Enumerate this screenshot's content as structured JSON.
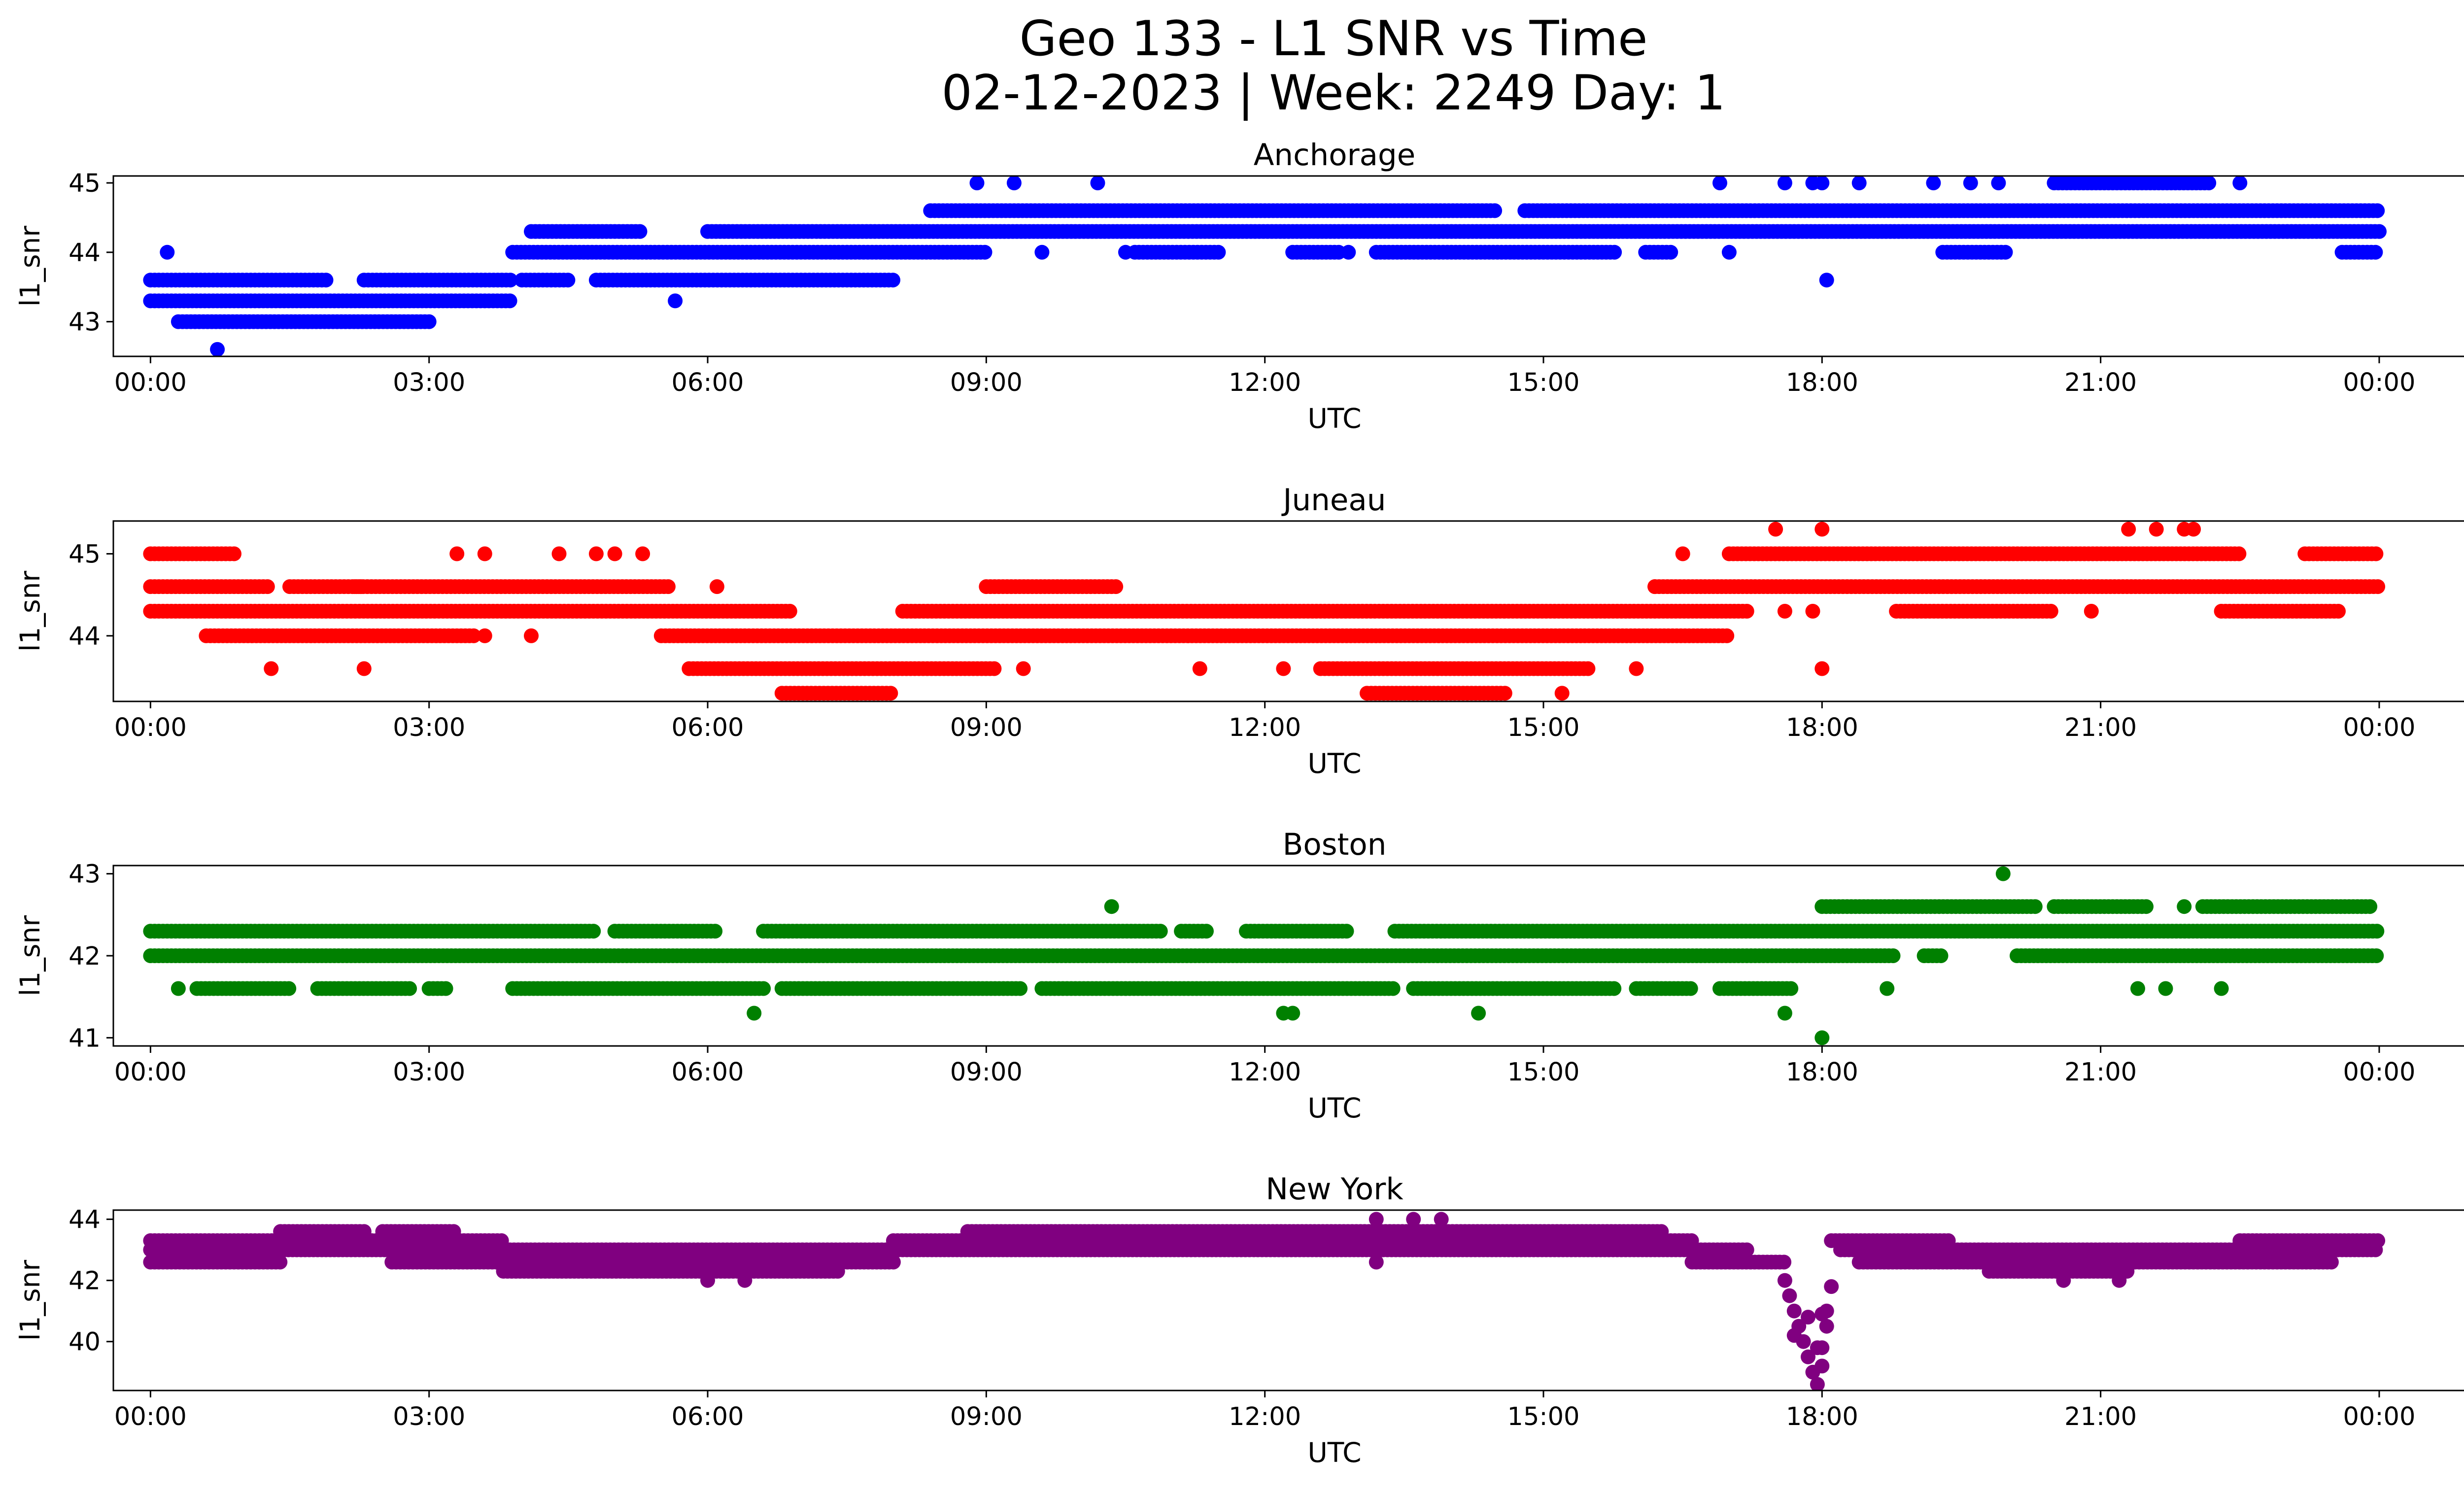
{
  "title_line1": "Geo 133 - L1 SNR vs Time",
  "title_line2": "02-12-2023 | Week: 2249 Day: 1",
  "chart_data": [
    {
      "type": "scatter",
      "title": "Anchorage",
      "xlabel": "UTC",
      "ylabel": "l1_snr",
      "color": "#0000ff",
      "xlim_hours": [
        -0.4,
        25.9
      ],
      "ylim": [
        42.5,
        45.1
      ],
      "yticks": [
        43,
        44,
        45
      ],
      "xticks": [
        "00:00",
        "03:00",
        "06:00",
        "09:00",
        "12:00",
        "15:00",
        "18:00",
        "21:00",
        "00:00"
      ],
      "bands": [
        {
          "y": 43.6,
          "ranges": [
            [
              0,
              1.9
            ],
            [
              2.3,
              3.9
            ],
            [
              4.0,
              4.5
            ],
            [
              4.8,
              8.0
            ]
          ]
        },
        {
          "y": 43.3,
          "ranges": [
            [
              0,
              3.9
            ]
          ]
        },
        {
          "y": 43.0,
          "ranges": [
            [
              0.3,
              3.0
            ]
          ]
        },
        {
          "y": 44.0,
          "ranges": [
            [
              3.9,
              9.0
            ],
            [
              10.6,
              11.5
            ],
            [
              12.3,
              12.8
            ],
            [
              13.2,
              15.8
            ],
            [
              16.1,
              16.4
            ],
            [
              19.3,
              20.0
            ],
            [
              23.6,
              24.0
            ]
          ]
        },
        {
          "y": 44.3,
          "ranges": [
            [
              4.1,
              5.3
            ],
            [
              6.0,
              24.0
            ]
          ]
        },
        {
          "y": 44.6,
          "ranges": [
            [
              8.4,
              14.5
            ],
            [
              14.8,
              24.0
            ]
          ]
        },
        {
          "y": 45.0,
          "ranges": [
            [
              20.5,
              22.2
            ]
          ]
        }
      ],
      "points": [
        [
          0.18,
          44.0
        ],
        [
          0.72,
          42.6
        ],
        [
          5.65,
          43.3
        ],
        [
          8.9,
          45.0
        ],
        [
          9.3,
          45.0
        ],
        [
          10.2,
          45.0
        ],
        [
          16.9,
          45.0
        ],
        [
          17.6,
          45.0
        ],
        [
          17.9,
          45.0
        ],
        [
          18.0,
          45.0
        ],
        [
          18.4,
          45.0
        ],
        [
          19.2,
          45.0
        ],
        [
          19.6,
          45.0
        ],
        [
          19.9,
          45.0
        ],
        [
          22.5,
          45.0
        ],
        [
          17.0,
          44.0
        ],
        [
          18.05,
          43.6
        ],
        [
          9.6,
          44.0
        ],
        [
          10.5,
          44.0
        ],
        [
          12.9,
          44.0
        ]
      ]
    },
    {
      "type": "scatter",
      "title": "Juneau",
      "xlabel": "UTC",
      "ylabel": "l1_snr",
      "color": "#ff0000",
      "xlim_hours": [
        -0.4,
        25.9
      ],
      "ylim": [
        43.2,
        45.4
      ],
      "yticks": [
        44,
        45
      ],
      "xticks": [
        "00:00",
        "03:00",
        "06:00",
        "09:00",
        "12:00",
        "15:00",
        "18:00",
        "21:00",
        "00:00"
      ],
      "bands": [
        {
          "y": 45.0,
          "ranges": [
            [
              0,
              0.9
            ],
            [
              17.0,
              22.5
            ],
            [
              23.2,
              24.0
            ]
          ]
        },
        {
          "y": 44.6,
          "ranges": [
            [
              0,
              1.3
            ],
            [
              1.5,
              2.3
            ],
            [
              2.2,
              5.6
            ],
            [
              9.0,
              10.4
            ],
            [
              16.2,
              24.0
            ]
          ]
        },
        {
          "y": 44.3,
          "ranges": [
            [
              0,
              6.9
            ],
            [
              8.1,
              17.2
            ],
            [
              18.8,
              20.5
            ],
            [
              22.3,
              23.6
            ]
          ]
        },
        {
          "y": 44.0,
          "ranges": [
            [
              0.6,
              3.5
            ],
            [
              5.5,
              17.0
            ]
          ]
        },
        {
          "y": 43.6,
          "ranges": [
            [
              5.8,
              9.1
            ],
            [
              12.6,
              15.5
            ]
          ]
        },
        {
          "y": 43.3,
          "ranges": [
            [
              6.8,
              8.0
            ],
            [
              13.1,
              14.6
            ]
          ]
        }
      ],
      "points": [
        [
          3.3,
          45.0
        ],
        [
          3.6,
          45.0
        ],
        [
          4.4,
          45.0
        ],
        [
          4.8,
          45.0
        ],
        [
          5.0,
          45.0
        ],
        [
          5.3,
          45.0
        ],
        [
          17.5,
          45.3
        ],
        [
          18.0,
          45.3
        ],
        [
          21.3,
          45.3
        ],
        [
          21.6,
          45.3
        ],
        [
          21.9,
          45.3
        ],
        [
          22.0,
          45.3
        ],
        [
          6.1,
          44.6
        ],
        [
          16.2,
          44.6
        ],
        [
          16.5,
          45.0
        ],
        [
          1.3,
          43.6
        ],
        [
          2.3,
          43.6
        ],
        [
          9.4,
          43.6
        ],
        [
          11.3,
          43.6
        ],
        [
          12.2,
          43.6
        ],
        [
          16.0,
          43.6
        ],
        [
          18.0,
          43.6
        ],
        [
          17.6,
          44.3
        ],
        [
          17.9,
          44.3
        ],
        [
          20.9,
          44.3
        ],
        [
          3.6,
          44.0
        ],
        [
          4.1,
          44.0
        ],
        [
          15.2,
          43.3
        ]
      ]
    },
    {
      "type": "scatter",
      "title": "Boston",
      "xlabel": "UTC",
      "ylabel": "l1_snr",
      "color": "#008000",
      "xlim_hours": [
        -0.4,
        25.9
      ],
      "ylim": [
        40.9,
        43.1
      ],
      "yticks": [
        41,
        42,
        43
      ],
      "xticks": [
        "00:00",
        "03:00",
        "06:00",
        "09:00",
        "12:00",
        "15:00",
        "18:00",
        "21:00",
        "00:00"
      ],
      "bands": [
        {
          "y": 42.3,
          "ranges": [
            [
              0,
              4.8
            ],
            [
              5.0,
              6.1
            ],
            [
              6.6,
              10.9
            ],
            [
              11.1,
              11.4
            ],
            [
              11.8,
              12.9
            ],
            [
              13.4,
              24.0
            ]
          ]
        },
        {
          "y": 42.0,
          "ranges": [
            [
              0,
              18.8
            ],
            [
              19.1,
              19.3
            ],
            [
              20.1,
              24.0
            ]
          ]
        },
        {
          "y": 41.6,
          "ranges": [
            [
              0.5,
              1.5
            ],
            [
              1.8,
              2.8
            ],
            [
              3.0,
              3.2
            ],
            [
              3.9,
              6.6
            ],
            [
              6.8,
              9.4
            ],
            [
              9.6,
              13.4
            ],
            [
              13.6,
              15.8
            ],
            [
              16.0,
              16.6
            ],
            [
              16.9,
              17.7
            ]
          ]
        },
        {
          "y": 42.6,
          "ranges": [
            [
              18.0,
              20.3
            ],
            [
              20.5,
              21.5
            ],
            [
              22.1,
              23.9
            ]
          ]
        }
      ],
      "points": [
        [
          10.35,
          42.6
        ],
        [
          6.5,
          41.3
        ],
        [
          12.2,
          41.3
        ],
        [
          12.3,
          41.3
        ],
        [
          14.3,
          41.3
        ],
        [
          17.6,
          41.3
        ],
        [
          18.0,
          41.0
        ],
        [
          19.95,
          43.0
        ],
        [
          0.3,
          41.6
        ],
        [
          18.7,
          41.6
        ],
        [
          21.4,
          41.6
        ],
        [
          21.7,
          41.6
        ],
        [
          22.3,
          41.6
        ],
        [
          21.9,
          42.6
        ]
      ]
    },
    {
      "type": "scatter",
      "title": "New York",
      "xlabel": "UTC",
      "ylabel": "l1_snr",
      "color": "#800080",
      "xlim_hours": [
        -0.4,
        25.9
      ],
      "ylim": [
        38.4,
        44.3
      ],
      "yticks": [
        40,
        42,
        44
      ],
      "xticks": [
        "00:00",
        "03:00",
        "06:00",
        "09:00",
        "12:00",
        "15:00",
        "18:00",
        "21:00",
        "00:00"
      ],
      "bands": [
        {
          "y": 43.3,
          "ranges": [
            [
              0,
              3.8
            ],
            [
              8.0,
              16.6
            ],
            [
              18.1,
              19.4
            ],
            [
              22.5,
              24.0
            ]
          ]
        },
        {
          "y": 43.0,
          "ranges": [
            [
              0,
              17.2
            ],
            [
              18.2,
              24.0
            ]
          ]
        },
        {
          "y": 42.6,
          "ranges": [
            [
              0,
              1.4
            ],
            [
              2.6,
              8.0
            ],
            [
              16.6,
              17.6
            ],
            [
              18.4,
              23.5
            ]
          ]
        },
        {
          "y": 42.3,
          "ranges": [
            [
              3.8,
              7.4
            ],
            [
              19.8,
              21.3
            ]
          ]
        },
        {
          "y": 43.6,
          "ranges": [
            [
              1.4,
              2.3
            ],
            [
              2.5,
              3.3
            ],
            [
              8.8,
              16.3
            ]
          ]
        }
      ],
      "points": [
        [
          13.2,
          44.0
        ],
        [
          13.6,
          44.0
        ],
        [
          13.9,
          44.0
        ],
        [
          17.6,
          42.0
        ],
        [
          17.65,
          41.5
        ],
        [
          17.7,
          41.0
        ],
        [
          17.75,
          40.5
        ],
        [
          17.8,
          40.0
        ],
        [
          17.85,
          39.5
        ],
        [
          17.9,
          39.0
        ],
        [
          17.95,
          38.6
        ],
        [
          18.0,
          39.2
        ],
        [
          18.0,
          39.8
        ],
        [
          18.05,
          40.5
        ],
        [
          18.05,
          41.0
        ],
        [
          18.1,
          41.8
        ],
        [
          17.7,
          40.2
        ],
        [
          17.85,
          40.8
        ],
        [
          17.95,
          39.8
        ],
        [
          18.0,
          40.9
        ],
        [
          6.0,
          42.0
        ],
        [
          6.4,
          42.0
        ],
        [
          21.2,
          42.0
        ],
        [
          20.6,
          42.0
        ],
        [
          13.2,
          42.6
        ]
      ]
    }
  ]
}
